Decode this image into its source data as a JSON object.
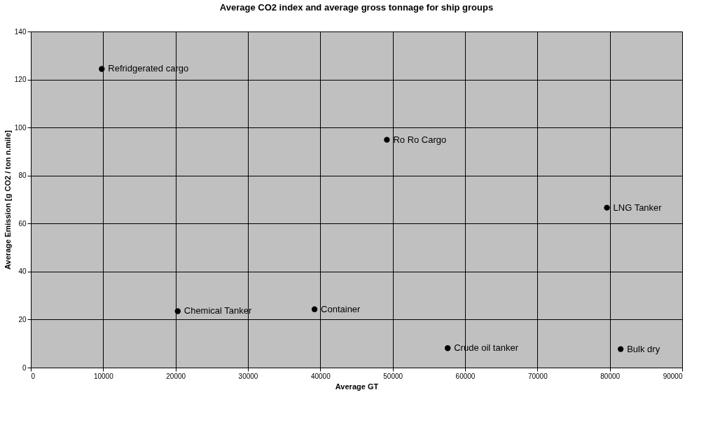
{
  "chart_data": {
    "type": "scatter",
    "title": "Average CO2 index and average gross tonnage for ship groups",
    "xlabel": "Average GT",
    "ylabel": "Average Emission [g CO2 / ton n.mile]",
    "x": [
      9800,
      20300,
      39200,
      49200,
      79600,
      57600,
      81500
    ],
    "series": [
      {
        "color": "#000000",
        "values": [
          124.4,
          23.5,
          24.3,
          94.9,
          66.6,
          8.1,
          7.7
        ]
      }
    ],
    "annotations": [
      {
        "text": "Refridgerated cargo",
        "x": 9800,
        "y": 124.4
      },
      {
        "text": "Chemical Tanker",
        "x": 20300,
        "y": 23.5
      },
      {
        "text": "Container",
        "x": 39200,
        "y": 24.3
      },
      {
        "text": "Ro Ro Cargo",
        "x": 49200,
        "y": 94.9
      },
      {
        "text": "LNG Tanker",
        "x": 79600,
        "y": 66.6
      },
      {
        "text": "Crude oil tanker",
        "x": 57600,
        "y": 8.1
      },
      {
        "text": "Bulk dry",
        "x": 81500,
        "y": 7.7
      }
    ],
    "xlim": [
      0,
      90000
    ],
    "xticks": [
      0,
      10000,
      20000,
      30000,
      40000,
      50000,
      60000,
      70000,
      80000,
      90000
    ],
    "ylim": [
      0,
      140
    ],
    "yticks": [
      0,
      20,
      40,
      60,
      80,
      100,
      120,
      140
    ],
    "grid": true,
    "marker": "circle"
  }
}
